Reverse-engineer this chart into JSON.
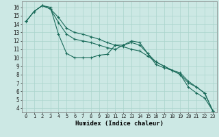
{
  "xlabel": "Humidex (Indice chaleur)",
  "bg_color": "#cce8e4",
  "grid_color": "#aad4cc",
  "line_color": "#1a6b5a",
  "xlim": [
    -0.5,
    23.5
  ],
  "ylim": [
    3.5,
    16.7
  ],
  "xticks": [
    0,
    1,
    2,
    3,
    4,
    5,
    6,
    7,
    8,
    9,
    10,
    11,
    12,
    13,
    14,
    15,
    16,
    17,
    18,
    19,
    20,
    21,
    22,
    23
  ],
  "yticks": [
    4,
    5,
    6,
    7,
    8,
    9,
    10,
    11,
    12,
    13,
    14,
    15,
    16
  ],
  "series1": [
    14.3,
    15.5,
    16.2,
    16.0,
    12.8,
    10.5,
    10.0,
    10.0,
    10.0,
    10.3,
    10.4,
    11.5,
    11.5,
    12.0,
    11.8,
    10.5,
    9.2,
    8.8,
    8.5,
    8.0,
    6.5,
    5.8,
    5.2,
    3.7
  ],
  "series2": [
    14.3,
    15.5,
    16.2,
    15.8,
    14.8,
    13.5,
    13.0,
    12.8,
    12.5,
    12.2,
    11.8,
    11.5,
    11.3,
    11.0,
    10.8,
    10.2,
    9.5,
    9.0,
    8.5,
    8.0,
    7.0,
    6.5,
    5.8,
    3.7
  ],
  "series3": [
    14.3,
    15.5,
    16.2,
    15.8,
    14.2,
    12.8,
    12.2,
    12.0,
    11.8,
    11.5,
    11.2,
    11.0,
    11.5,
    11.8,
    11.5,
    10.5,
    9.5,
    9.0,
    8.5,
    8.2,
    7.2,
    6.5,
    5.8,
    3.7
  ],
  "xlabel_fontsize": 6.5,
  "tick_fontsize_x": 5.0,
  "tick_fontsize_y": 5.5
}
